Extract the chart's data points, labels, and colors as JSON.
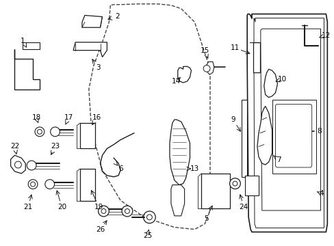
{
  "background_color": "#ffffff",
  "line_color": "#1a1a1a",
  "label_fontsize": 7.5,
  "figsize": [
    4.89,
    3.6
  ],
  "dpi": 100
}
